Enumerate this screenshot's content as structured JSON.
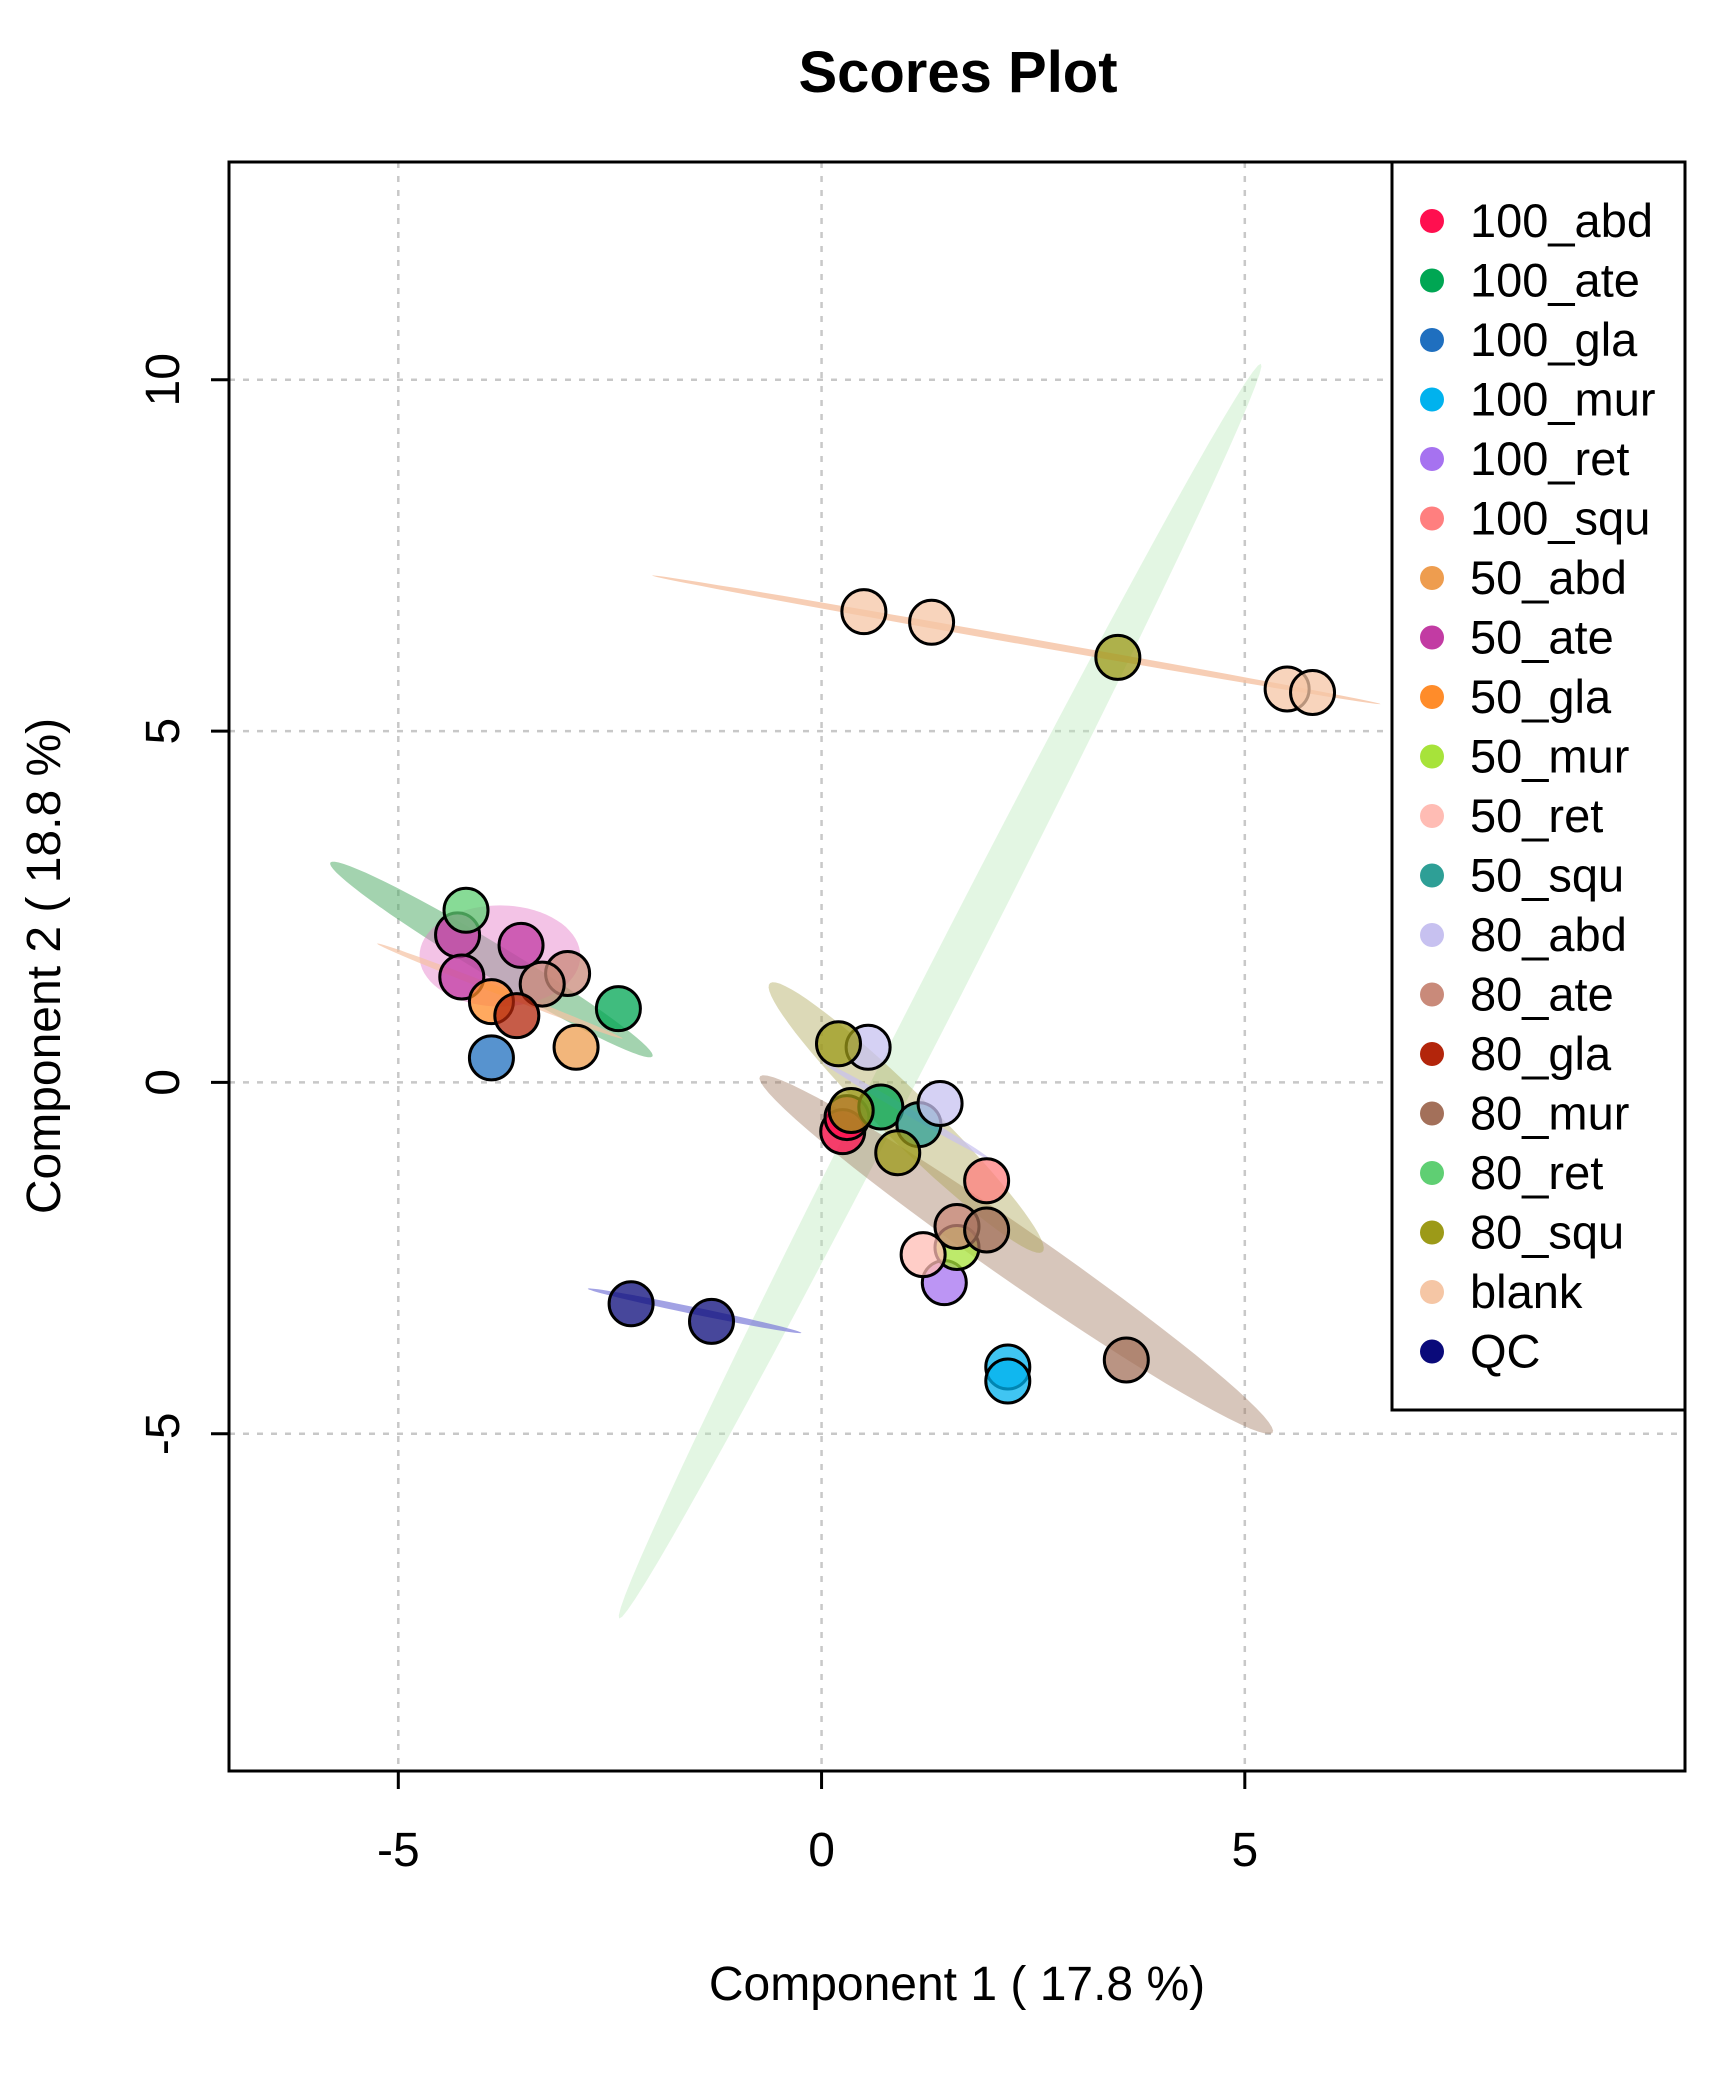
{
  "chart_data": {
    "type": "scatter",
    "title": "Scores Plot",
    "xlabel": "Component 1 ( 17.8 %)",
    "ylabel": "Component 2 ( 18.8 %)",
    "xlim": [
      -7,
      10.2
    ],
    "ylim": [
      -9.8,
      13.1
    ],
    "xticks": [
      -5,
      0,
      5
    ],
    "yticks": [
      -5,
      0,
      5,
      10
    ],
    "grid": true,
    "legend_position": "top-right",
    "groups": [
      {
        "name": "100_abd",
        "color": "#ff0f4f",
        "points": [
          [
            0.25,
            -0.7
          ],
          [
            0.3,
            -0.5
          ]
        ]
      },
      {
        "name": "100_ate",
        "color": "#00a653",
        "points": [
          [
            0.7,
            -0.35
          ],
          [
            -2.4,
            1.05
          ]
        ]
      },
      {
        "name": "100_gla",
        "color": "#1f6fbf",
        "points": [
          [
            -3.9,
            0.35
          ]
        ]
      },
      {
        "name": "100_mur",
        "color": "#00b2ee",
        "points": [
          [
            2.2,
            -4.05
          ],
          [
            2.2,
            -4.25
          ]
        ]
      },
      {
        "name": "100_ret",
        "color": "#a672f0",
        "points": [
          [
            1.45,
            -2.85
          ]
        ]
      },
      {
        "name": "100_squ",
        "color": "#ff7f7f",
        "points": [
          [
            1.95,
            -1.4
          ]
        ]
      },
      {
        "name": "50_abd",
        "color": "#ee9d4f",
        "points": [
          [
            -2.9,
            0.5
          ]
        ]
      },
      {
        "name": "50_ate",
        "color": "#c23ba3",
        "points": [
          [
            -4.3,
            2.1
          ],
          [
            -4.25,
            1.5
          ],
          [
            -3.55,
            1.95
          ]
        ]
      },
      {
        "name": "50_gla",
        "color": "#ff8c2a",
        "points": [
          [
            -3.9,
            1.15
          ]
        ]
      },
      {
        "name": "50_mur",
        "color": "#a7e33a",
        "points": [
          [
            1.6,
            -2.35
          ]
        ]
      },
      {
        "name": "50_ret",
        "color": "#ffbcb4",
        "points": [
          [
            1.2,
            -2.45
          ]
        ]
      },
      {
        "name": "50_squ",
        "color": "#2e9f96",
        "points": [
          [
            1.15,
            -0.6
          ]
        ]
      },
      {
        "name": "80_abd",
        "color": "#c7c1f0",
        "points": [
          [
            0.55,
            0.5
          ],
          [
            1.4,
            -0.3
          ]
        ]
      },
      {
        "name": "80_ate",
        "color": "#c98a7a",
        "points": [
          [
            1.6,
            -2.05
          ],
          [
            -3.0,
            1.55
          ],
          [
            -3.3,
            1.4
          ]
        ]
      },
      {
        "name": "80_gla",
        "color": "#b3250b",
        "points": [
          [
            -3.6,
            0.95
          ]
        ]
      },
      {
        "name": "80_mur",
        "color": "#a3705a",
        "points": [
          [
            1.95,
            -2.1
          ],
          [
            3.6,
            -3.95
          ]
        ]
      },
      {
        "name": "80_ret",
        "color": "#5fcf73",
        "points": [
          [
            -4.2,
            2.45
          ]
        ]
      },
      {
        "name": "80_squ",
        "color": "#9c9a18",
        "points": [
          [
            0.2,
            0.55
          ],
          [
            0.35,
            -0.4
          ],
          [
            0.9,
            -1.0
          ],
          [
            3.5,
            6.05
          ]
        ]
      },
      {
        "name": "blank",
        "color": "#f5c6a5",
        "points": [
          [
            0.5,
            6.7
          ],
          [
            1.3,
            6.55
          ],
          [
            5.5,
            5.6
          ],
          [
            5.8,
            5.55
          ]
        ]
      },
      {
        "name": "QC",
        "color": "#0a0a7a",
        "points": [
          [
            -2.25,
            -3.15
          ],
          [
            -1.3,
            -3.4
          ]
        ]
      }
    ],
    "ellipses": [
      {
        "group": "80_ret",
        "color": "#b8e8b8",
        "opacity": 0.4,
        "center": [
          1.4,
          1.3
        ],
        "semi_axes": [
          9.7,
          0.25
        ],
        "angle_deg": 67
      },
      {
        "group": "100_ate",
        "color": "#48a860",
        "opacity": 0.5,
        "center": [
          -3.9,
          1.75
        ],
        "semi_axes": [
          2.35,
          0.22
        ],
        "angle_deg": -36
      },
      {
        "group": "50_ate",
        "color": "#e47ac8",
        "opacity": 0.45,
        "center": [
          -3.8,
          1.8
        ],
        "semi_axes": [
          0.95,
          0.72
        ],
        "angle_deg": 0
      },
      {
        "group": "80_mur",
        "color": "#9b7056",
        "opacity": 0.4,
        "center": [
          2.3,
          -2.45
        ],
        "semi_axes": [
          3.95,
          0.35
        ],
        "angle_deg": -40
      },
      {
        "group": "80_squ",
        "color": "#a8a04a",
        "opacity": 0.4,
        "center": [
          1.0,
          -0.5
        ],
        "semi_axes": [
          2.5,
          0.32
        ],
        "angle_deg": -50
      },
      {
        "group": "blank",
        "color": "#f5c2a3",
        "opacity": 0.8,
        "center": [
          2.3,
          6.3
        ],
        "semi_axes": [
          4.4,
          0.05
        ],
        "angle_deg": -12
      },
      {
        "group": "50_ret",
        "color": "#f5c2a3",
        "opacity": 0.7,
        "center": [
          -3.8,
          1.3
        ],
        "semi_axes": [
          1.6,
          0.05
        ],
        "angle_deg": -25
      },
      {
        "group": "QC",
        "color": "#7a7ad8",
        "opacity": 0.7,
        "center": [
          -1.5,
          -3.25
        ],
        "semi_axes": [
          1.3,
          0.05
        ],
        "angle_deg": -14
      },
      {
        "group": "80_abd",
        "color": "#c7c1f0",
        "opacity": 0.7,
        "center": [
          1.0,
          -0.4
        ],
        "semi_axes": [
          1.2,
          0.05
        ],
        "angle_deg": -35
      }
    ]
  }
}
